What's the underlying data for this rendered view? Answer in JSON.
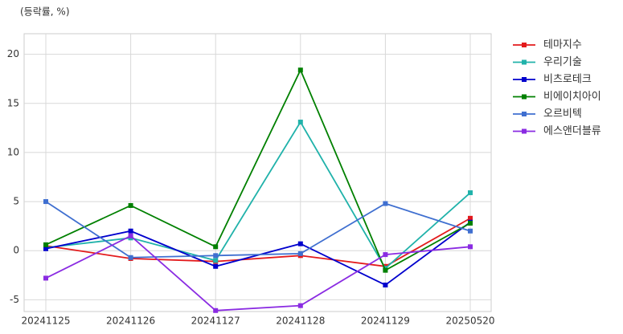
{
  "chart_data": {
    "type": "line",
    "ylabel": "(등락률, %)",
    "categories": [
      "20241125",
      "20241126",
      "20241127",
      "20241128",
      "20241129",
      "20250520"
    ],
    "series": [
      {
        "name": "테마지수",
        "color": "#e31a1c",
        "values": [
          0.5,
          -0.8,
          -1.1,
          -0.5,
          -1.6,
          3.3
        ]
      },
      {
        "name": "우리기술",
        "color": "#20b2aa",
        "values": [
          0.3,
          1.3,
          -1.0,
          13.1,
          -1.8,
          5.9
        ]
      },
      {
        "name": "비츠로테크",
        "color": "#0000cd",
        "values": [
          0.2,
          2.0,
          -1.6,
          0.7,
          -3.5,
          2.9
        ]
      },
      {
        "name": "비에이치아이",
        "color": "#008000",
        "values": [
          0.6,
          4.6,
          0.4,
          18.4,
          -2.0,
          2.8
        ]
      },
      {
        "name": "오르비텍",
        "color": "#3f6fd0",
        "values": [
          5.0,
          -0.7,
          -0.5,
          -0.3,
          4.8,
          2.0
        ]
      },
      {
        "name": "에스앤더블류",
        "color": "#8a2be2",
        "values": [
          -2.8,
          1.5,
          -6.1,
          -5.6,
          -0.4,
          0.4
        ]
      }
    ],
    "ylim": [
      -6.2,
      22.1
    ],
    "yticks": [
      -5,
      0,
      5,
      10,
      15,
      20
    ],
    "grid": true,
    "marker": "square",
    "legend": "outside-right"
  }
}
